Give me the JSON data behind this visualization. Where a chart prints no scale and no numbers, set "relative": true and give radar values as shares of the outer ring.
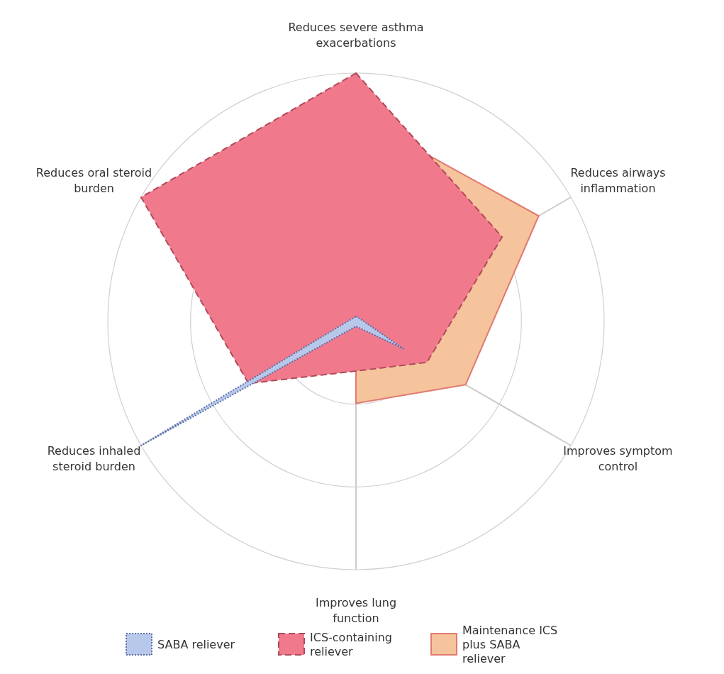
{
  "chart_data": {
    "type": "radar",
    "relative": true,
    "categories": [
      "Reduces severe asthma exacerbations",
      "Reduces airways inflammation",
      "Improves symptom control",
      "Improves lung function",
      "Reduces inhaled steroid burden",
      "Reduces oral steroid burden"
    ],
    "series": [
      {
        "name": "Maintenance ICS plus SABA reliever",
        "color": "#f5c39c",
        "line_style": "solid",
        "values": [
          0.83,
          0.85,
          0.51,
          0.33,
          0,
          0.81
        ]
      },
      {
        "name": "ICS-containing reliever",
        "color": "#f07a8c",
        "line_style": "dashed",
        "values": [
          1,
          0.68,
          0.33,
          0.2,
          0.5,
          1
        ]
      },
      {
        "name": "SABA reliever",
        "color": "#b8c8ea",
        "line_style": "dotted",
        "values": [
          0.02,
          0.02,
          0.22,
          0.02,
          1,
          0.02
        ]
      }
    ],
    "grid": true,
    "legend": "bottom"
  }
}
